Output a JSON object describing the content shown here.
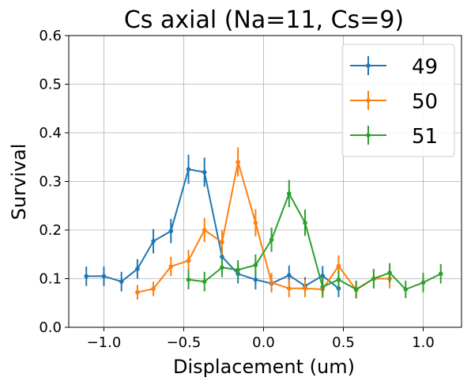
{
  "chart_data": {
    "type": "line",
    "title": "Cs axial (Na=11, Cs=9)",
    "xlabel": "Displacement (um)",
    "ylabel": "Survival",
    "xlim": [
      -1.22,
      1.24
    ],
    "ylim": [
      0.0,
      0.6
    ],
    "xticks": [
      -1.0,
      -0.5,
      0.0,
      0.5,
      1.0
    ],
    "xtick_labels": [
      "−1.0",
      "−0.5",
      "0.0",
      "0.5",
      "1.0"
    ],
    "yticks": [
      0.0,
      0.1,
      0.2,
      0.3,
      0.4,
      0.5,
      0.6
    ],
    "ytick_labels": [
      "0.0",
      "0.1",
      "0.2",
      "0.3",
      "0.4",
      "0.5",
      "0.6"
    ],
    "grid": true,
    "legend_position": "top-right",
    "series": [
      {
        "name": "49",
        "color": "#1f77b4",
        "x": [
          -1.11,
          -1.0,
          -0.89,
          -0.79,
          -0.69,
          -0.58,
          -0.47,
          -0.37,
          -0.26,
          -0.16,
          -0.05,
          0.05,
          0.16,
          0.26,
          0.37,
          0.47
        ],
        "y": [
          0.105,
          0.105,
          0.094,
          0.12,
          0.177,
          0.198,
          0.325,
          0.319,
          0.145,
          0.11,
          0.098,
          0.09,
          0.107,
          0.085,
          0.106,
          0.08
        ],
        "yerr": [
          0.02,
          0.02,
          0.02,
          0.02,
          0.025,
          0.025,
          0.03,
          0.03,
          0.02,
          0.02,
          0.02,
          0.018,
          0.02,
          0.018,
          0.02,
          0.018
        ]
      },
      {
        "name": "50",
        "color": "#ff7f0e",
        "x": [
          -0.79,
          -0.69,
          -0.58,
          -0.47,
          -0.37,
          -0.26,
          -0.16,
          -0.05,
          0.05,
          0.16,
          0.26,
          0.37,
          0.47,
          0.58,
          0.69,
          0.79
        ],
        "y": [
          0.072,
          0.079,
          0.125,
          0.137,
          0.2,
          0.175,
          0.34,
          0.215,
          0.092,
          0.08,
          0.08,
          0.078,
          0.126,
          0.077,
          0.1,
          0.1
        ],
        "yerr": [
          0.015,
          0.015,
          0.02,
          0.022,
          0.025,
          0.025,
          0.03,
          0.028,
          0.02,
          0.018,
          0.018,
          0.018,
          0.022,
          0.018,
          0.02,
          0.02
        ]
      },
      {
        "name": "51",
        "color": "#2ca02c",
        "x": [
          -0.47,
          -0.37,
          -0.26,
          -0.16,
          -0.05,
          0.05,
          0.16,
          0.26,
          0.37,
          0.47,
          0.58,
          0.69,
          0.79,
          0.89,
          1.0,
          1.11
        ],
        "y": [
          0.098,
          0.094,
          0.123,
          0.118,
          0.128,
          0.18,
          0.275,
          0.215,
          0.083,
          0.098,
          0.078,
          0.1,
          0.112,
          0.078,
          0.092,
          0.11
        ],
        "yerr": [
          0.02,
          0.02,
          0.02,
          0.02,
          0.022,
          0.025,
          0.028,
          0.027,
          0.02,
          0.02,
          0.018,
          0.02,
          0.02,
          0.018,
          0.02,
          0.02
        ]
      }
    ]
  }
}
